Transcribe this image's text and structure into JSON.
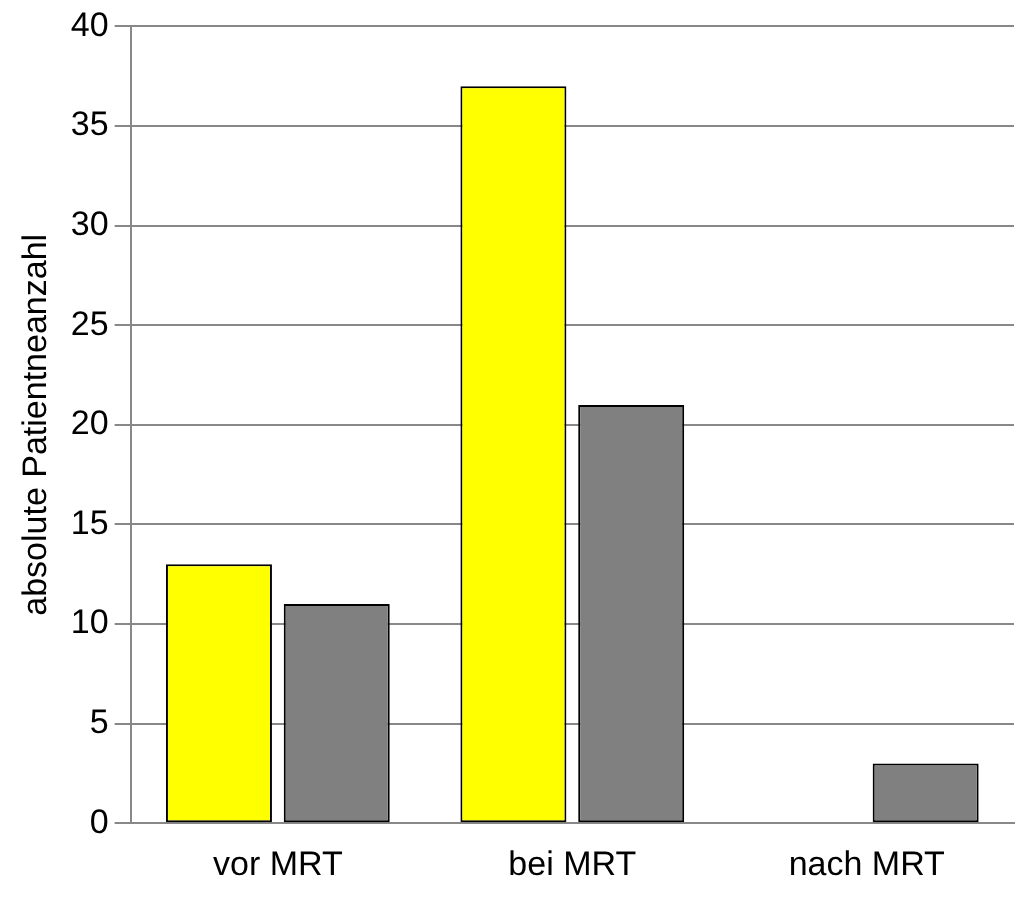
{
  "chart_data": {
    "type": "bar",
    "ylabel": "absolute Patientneanzahl",
    "categories": [
      "vor MRT",
      "bei MRT",
      "nach MRT"
    ],
    "series": [
      {
        "color": "#ffff00",
        "values": [
          13,
          37,
          null
        ]
      },
      {
        "color": "#808080",
        "values": [
          11,
          21,
          3
        ]
      }
    ],
    "ylim": [
      0,
      40
    ],
    "yticks": [
      0,
      5,
      10,
      15,
      20,
      25,
      30,
      35,
      40
    ],
    "grid": "y",
    "legend": false
  }
}
